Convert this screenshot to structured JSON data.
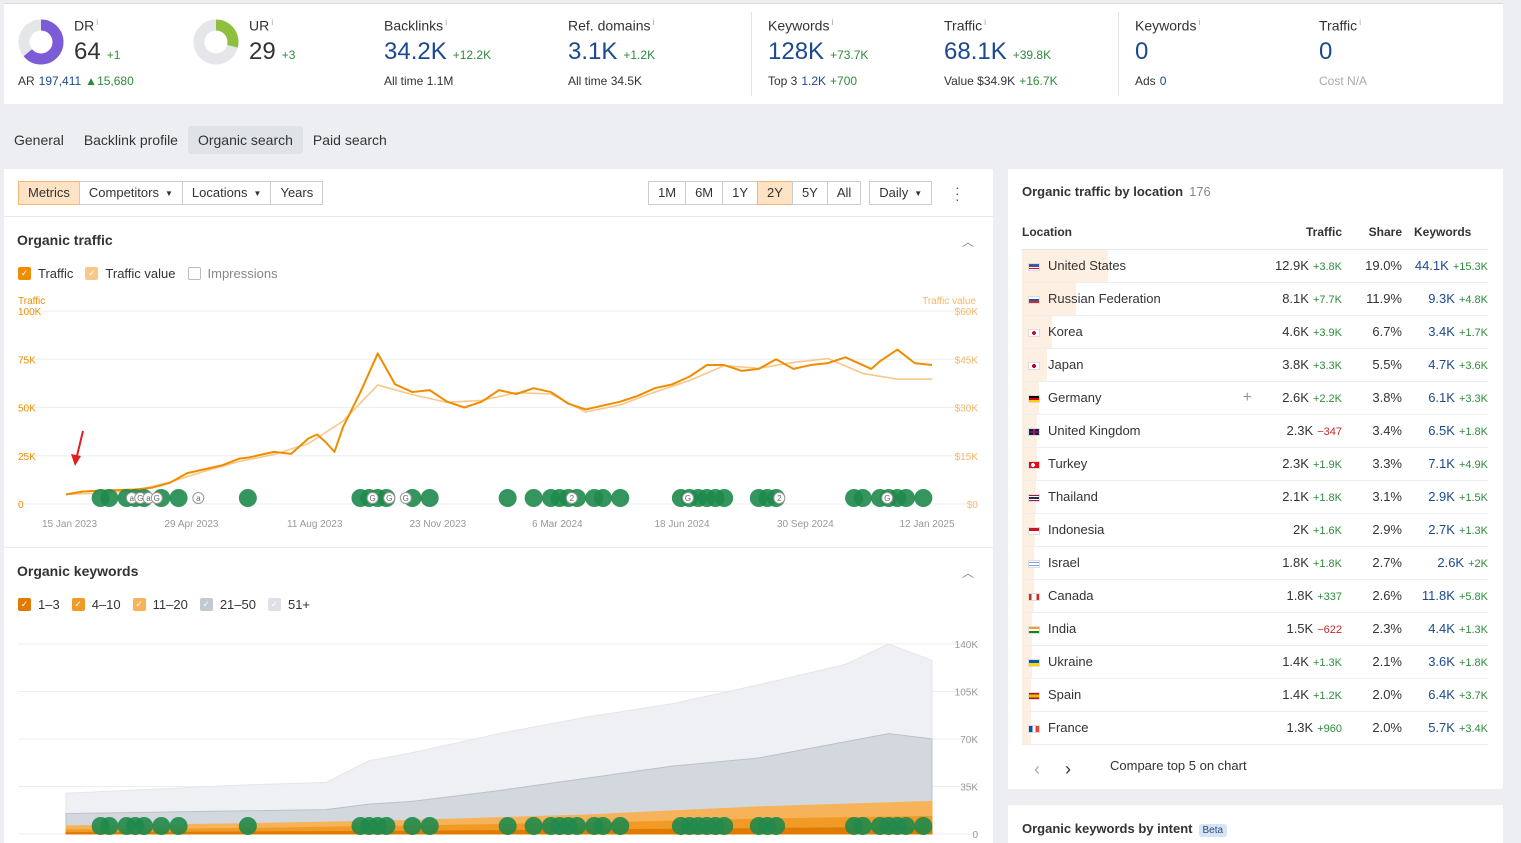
{
  "metrics": {
    "dr": {
      "label": "DR",
      "value": "64",
      "delta": "+1",
      "ring_fraction": 0.64,
      "ring_color": "#7b5cd6"
    },
    "ar": {
      "label": "AR",
      "value": "197,411",
      "delta": "15,680"
    },
    "ur": {
      "label": "UR",
      "value": "29",
      "delta": "+3",
      "ring_fraction": 0.29,
      "ring_color": "#8fbf3f"
    },
    "backlinks": {
      "label": "Backlinks",
      "value": "34.2K",
      "delta": "+12.2K",
      "sub_label": "All time",
      "sub_value": "1.1M"
    },
    "ref_domains": {
      "label": "Ref. domains",
      "value": "3.1K",
      "delta": "+1.2K",
      "sub_label": "All time",
      "sub_value": "34.5K"
    },
    "keywords": {
      "label": "Keywords",
      "value": "128K",
      "delta": "+73.7K",
      "sub_label": "Top 3",
      "sub_value": "1.2K",
      "sub_delta": "+700"
    },
    "traffic": {
      "label": "Traffic",
      "value": "68.1K",
      "delta": "+39.8K",
      "sub_label": "Value",
      "sub_value": "$34.9K",
      "sub_delta": "+16.7K"
    },
    "paid_keywords": {
      "label": "Keywords",
      "value": "0",
      "sub_label": "Ads",
      "sub_value": "0"
    },
    "paid_traffic": {
      "label": "Traffic",
      "value": "0",
      "sub_label": "Cost",
      "sub_value": "N/A"
    }
  },
  "tabs": [
    {
      "label": "General"
    },
    {
      "label": "Backlink profile"
    },
    {
      "label": "Organic search",
      "active": true
    },
    {
      "label": "Paid search"
    }
  ],
  "controls": {
    "metrics": "Metrics",
    "competitors": "Competitors",
    "locations": "Locations",
    "years": "Years",
    "ranges": [
      "1M",
      "6M",
      "1Y",
      "2Y",
      "5Y",
      "All"
    ],
    "active_range": "2Y",
    "interval": "Daily"
  },
  "organic_traffic": {
    "title": "Organic traffic",
    "legend": [
      {
        "label": "Traffic",
        "checked": true,
        "color": "#f08c00"
      },
      {
        "label": "Traffic value",
        "checked": true,
        "color": "#f8c88a"
      },
      {
        "label": "Impressions",
        "checked": false,
        "color": "#bbbbbb"
      }
    ]
  },
  "organic_keywords": {
    "title": "Organic keywords",
    "legend": [
      {
        "label": "1–3",
        "checked": true,
        "color": "#e07b00"
      },
      {
        "label": "4–10",
        "checked": true,
        "color": "#f19a25"
      },
      {
        "label": "11–20",
        "checked": true,
        "color": "#f6b35a"
      },
      {
        "label": "21–50",
        "checked": true,
        "color": "#c3c9d1"
      },
      {
        "label": "51+",
        "checked": true,
        "color": "#dde1e6"
      }
    ]
  },
  "chart_data": [
    {
      "type": "line",
      "ylabel": "Traffic",
      "y2label": "Traffic value",
      "y_ticks": [
        "0",
        "25K",
        "50K",
        "75K",
        "100K"
      ],
      "y2_ticks": [
        "$0",
        "$15K",
        "$30K",
        "$45K",
        "$60K"
      ],
      "x_ticks": [
        "15 Jan 2023",
        "29 Apr 2023",
        "11 Aug 2023",
        "23 Nov 2023",
        "6 Mar 2024",
        "18 Jun 2024",
        "30 Sep 2024",
        "12 Jan 2025"
      ],
      "ylim": [
        0,
        100000
      ],
      "y2lim": [
        0,
        60000
      ],
      "series": [
        {
          "name": "Traffic",
          "color": "#f08c00",
          "x": [
            0,
            2,
            4,
            6,
            8,
            10,
            12,
            14,
            16,
            18,
            20,
            21,
            22,
            24,
            26,
            27,
            28,
            29,
            30,
            31,
            32,
            34,
            36,
            38,
            40,
            42,
            44,
            46,
            48,
            50,
            52,
            54,
            56,
            58,
            60,
            62,
            64,
            66,
            68,
            70,
            72,
            74,
            76,
            78,
            80,
            82,
            84,
            86,
            88,
            90,
            92,
            93,
            94,
            96,
            98,
            100
          ],
          "values": [
            5000,
            6500,
            7000,
            7200,
            7500,
            8500,
            11000,
            16000,
            18000,
            20000,
            23500,
            24000,
            25000,
            27000,
            26000,
            30000,
            34000,
            36000,
            32000,
            27000,
            40000,
            58000,
            78000,
            62000,
            58000,
            59000,
            53000,
            50000,
            53000,
            59000,
            57000,
            60000,
            58000,
            52000,
            49000,
            51000,
            53000,
            56000,
            60000,
            62000,
            66000,
            72000,
            72000,
            69000,
            70000,
            75000,
            70000,
            72000,
            73000,
            76000,
            72000,
            70000,
            74000,
            80000,
            73000,
            72000
          ]
        },
        {
          "name": "Traffic value",
          "color": "#f8c88a",
          "x": [
            0,
            4,
            8,
            12,
            16,
            20,
            24,
            28,
            32,
            36,
            40,
            44,
            48,
            52,
            56,
            60,
            64,
            68,
            72,
            76,
            80,
            84,
            88,
            92,
            96,
            100
          ],
          "values": [
            3000,
            3400,
            4200,
            6800,
            10200,
            13200,
            15400,
            18800,
            25800,
            37000,
            34000,
            31600,
            32200,
            34600,
            34200,
            28600,
            30800,
            34800,
            38400,
            43000,
            42200,
            44000,
            45200,
            40600,
            38800,
            38800
          ]
        }
      ]
    },
    {
      "type": "area",
      "y_ticks": [
        "0",
        "35K",
        "70K",
        "105K",
        "140K"
      ],
      "x_ticks": [
        "15 Jan 2023",
        "29 Apr 2023",
        "11 Aug 2023",
        "23 Nov 2023",
        "6 Mar 2024",
        "18 Jun 2024",
        "30 Sep 2024",
        "12 Jan 2025"
      ],
      "ylim": [
        0,
        140000
      ],
      "series": [
        {
          "name": "51+",
          "color": "#eef0f3",
          "x": [
            0,
            10,
            20,
            30,
            35,
            40,
            50,
            60,
            70,
            80,
            90,
            95,
            100
          ],
          "values": [
            30000,
            33000,
            36000,
            38000,
            54000,
            60000,
            74000,
            86000,
            96000,
            110000,
            125000,
            140000,
            128000
          ]
        },
        {
          "name": "21–50",
          "color": "#d3d8de",
          "x": [
            0,
            10,
            20,
            30,
            35,
            40,
            50,
            60,
            70,
            80,
            90,
            95,
            100
          ],
          "values": [
            15000,
            16000,
            17000,
            18000,
            22000,
            24000,
            32000,
            41000,
            50000,
            56000,
            68000,
            74000,
            70000
          ]
        },
        {
          "name": "11–20",
          "color": "#f6b35a",
          "x": [
            0,
            20,
            40,
            60,
            80,
            100
          ],
          "values": [
            6000,
            7500,
            10000,
            14000,
            20000,
            24000
          ]
        },
        {
          "name": "4–10",
          "color": "#f19a25",
          "x": [
            0,
            20,
            40,
            60,
            80,
            100
          ],
          "values": [
            3000,
            4000,
            6000,
            8000,
            11000,
            13000
          ]
        },
        {
          "name": "1–3",
          "color": "#e07b00",
          "x": [
            0,
            20,
            40,
            60,
            80,
            100
          ],
          "values": [
            1000,
            1500,
            2000,
            3000,
            4000,
            5000
          ]
        }
      ]
    }
  ],
  "annotations": {
    "marker_positions": [
      4,
      5,
      7,
      8,
      9,
      11,
      13,
      21,
      34,
      35,
      36,
      37,
      40,
      42,
      51,
      54,
      56,
      57,
      58,
      59,
      61,
      62,
      64,
      71,
      72,
      73,
      74,
      75,
      76,
      80,
      81,
      82,
      91,
      92,
      94,
      95,
      96,
      97,
      99
    ],
    "marker_glyphs": {
      "13": "a",
      "14": "G",
      "15": "a",
      "16": "G",
      "21": "a",
      "42": "G",
      "44": "G",
      "46": "G",
      "66": "2",
      "80": "G",
      "91": "2",
      "104": "G"
    }
  },
  "location_panel": {
    "title": "Organic traffic by location",
    "count": "176",
    "headers": {
      "location": "Location",
      "traffic": "Traffic",
      "share": "Share",
      "keywords": "Keywords"
    },
    "rows": [
      {
        "name": "United States",
        "traffic": "12.9K",
        "traffic_delta": "+3.8K",
        "share": "19.0%",
        "keywords": "44.1K",
        "kw_delta": "+15.3K",
        "flag": "us",
        "share_value": 19.0
      },
      {
        "name": "Russian Federation",
        "traffic": "8.1K",
        "traffic_delta": "+7.7K",
        "share": "11.9%",
        "keywords": "9.3K",
        "kw_delta": "+4.8K",
        "flag": "ru",
        "share_value": 11.9
      },
      {
        "name": "Korea",
        "traffic": "4.6K",
        "traffic_delta": "+3.9K",
        "share": "6.7%",
        "keywords": "3.4K",
        "kw_delta": "+1.7K",
        "flag": "kr",
        "share_value": 6.7
      },
      {
        "name": "Japan",
        "traffic": "3.8K",
        "traffic_delta": "+3.3K",
        "share": "5.5%",
        "keywords": "4.7K",
        "kw_delta": "+3.6K",
        "flag": "jp",
        "share_value": 5.5
      },
      {
        "name": "Germany",
        "traffic": "2.6K",
        "traffic_delta": "+2.2K",
        "share": "3.8%",
        "keywords": "6.1K",
        "kw_delta": "+3.3K",
        "flag": "de",
        "share_value": 3.8
      },
      {
        "name": "United Kingdom",
        "traffic": "2.3K",
        "traffic_delta": "−347",
        "share": "3.4%",
        "keywords": "6.5K",
        "kw_delta": "+1.8K",
        "flag": "gb",
        "share_value": 3.4
      },
      {
        "name": "Turkey",
        "traffic": "2.3K",
        "traffic_delta": "+1.9K",
        "share": "3.3%",
        "keywords": "7.1K",
        "kw_delta": "+4.9K",
        "flag": "tr",
        "share_value": 3.3
      },
      {
        "name": "Thailand",
        "traffic": "2.1K",
        "traffic_delta": "+1.8K",
        "share": "3.1%",
        "keywords": "2.9K",
        "kw_delta": "+1.5K",
        "flag": "th",
        "share_value": 3.1
      },
      {
        "name": "Indonesia",
        "traffic": "2K",
        "traffic_delta": "+1.6K",
        "share": "2.9%",
        "keywords": "2.7K",
        "kw_delta": "+1.3K",
        "flag": "id",
        "share_value": 2.9
      },
      {
        "name": "Israel",
        "traffic": "1.8K",
        "traffic_delta": "+1.8K",
        "share": "2.7%",
        "keywords": "2.6K",
        "kw_delta": "+2K",
        "flag": "il",
        "share_value": 2.7
      },
      {
        "name": "Canada",
        "traffic": "1.8K",
        "traffic_delta": "+337",
        "share": "2.6%",
        "keywords": "11.8K",
        "kw_delta": "+5.8K",
        "flag": "ca",
        "share_value": 2.6
      },
      {
        "name": "India",
        "traffic": "1.5K",
        "traffic_delta": "−622",
        "share": "2.3%",
        "keywords": "4.4K",
        "kw_delta": "+1.3K",
        "flag": "in",
        "share_value": 2.3
      },
      {
        "name": "Ukraine",
        "traffic": "1.4K",
        "traffic_delta": "+1.3K",
        "share": "2.1%",
        "keywords": "3.6K",
        "kw_delta": "+1.8K",
        "flag": "ua",
        "share_value": 2.1
      },
      {
        "name": "Spain",
        "traffic": "1.4K",
        "traffic_delta": "+1.2K",
        "share": "2.0%",
        "keywords": "6.4K",
        "kw_delta": "+3.7K",
        "flag": "es",
        "share_value": 2.0
      },
      {
        "name": "France",
        "traffic": "1.3K",
        "traffic_delta": "+960",
        "share": "2.0%",
        "keywords": "5.7K",
        "kw_delta": "+3.4K",
        "flag": "fr",
        "share_value": 2.0
      }
    ],
    "compare_label": "Compare top 5 on chart"
  },
  "intent_panel": {
    "title": "Organic keywords by intent",
    "badge": "Beta"
  },
  "colors": {
    "accent_blue": "#1a4a8d",
    "up": "#2e8b3c",
    "down": "#c62828",
    "orange": "#f08c00",
    "annotation_green": "#1f8a4c"
  }
}
